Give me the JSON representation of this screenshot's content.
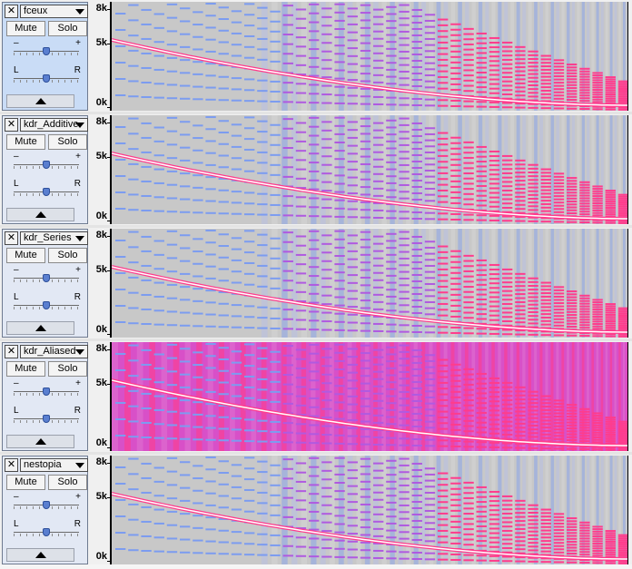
{
  "tracks": [
    {
      "name": "fceux",
      "selected": true,
      "style": "standard"
    },
    {
      "name": "kdr_Additive",
      "selected": false,
      "style": "standard"
    },
    {
      "name": "kdr_Series",
      "selected": false,
      "style": "standard"
    },
    {
      "name": "kdr_Aliased",
      "selected": false,
      "style": "aliased"
    },
    {
      "name": "nestopia",
      "selected": false,
      "style": "dense"
    }
  ],
  "controls": {
    "mute_label": "Mute",
    "solo_label": "Solo",
    "gain_minus": "–",
    "gain_plus": "+",
    "pan_left": "L",
    "pan_right": "R"
  },
  "ruler": {
    "top_label": "8k",
    "mid_label": "5k",
    "bottom_label": "0k"
  },
  "icons": {
    "close": "close-icon",
    "dropdown": "chevron-down-icon",
    "collapse": "collapse-up-icon"
  },
  "colors": {
    "spectrogram_bg": "#c8c8c8",
    "low_energy": "#7c9cf0",
    "mid_energy": "#b05ae0",
    "high_energy": "#ff3c8c",
    "peak": "#ffffff",
    "aliased_bg": "#d850c8"
  }
}
